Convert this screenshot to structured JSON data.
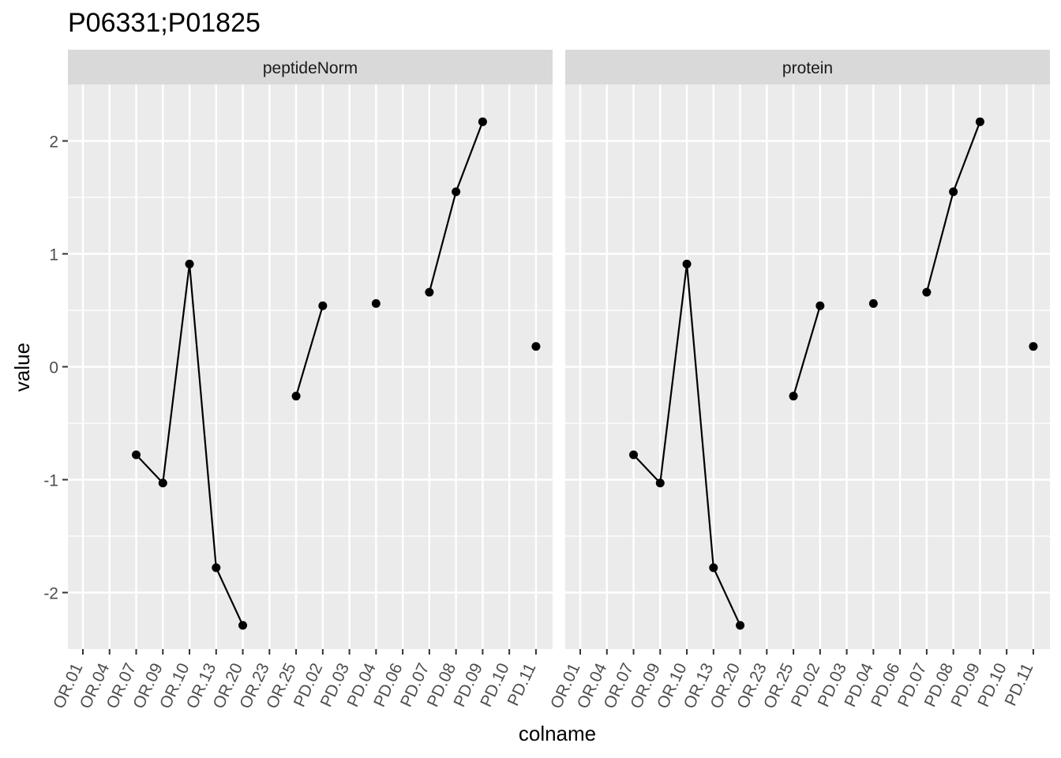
{
  "chart_data": {
    "type": "line",
    "title": "P06331;P01825",
    "xlabel": "colname",
    "ylabel": "value",
    "ylim": [
      -2.5,
      2.5
    ],
    "yticks": [
      -2,
      -1,
      0,
      1,
      2
    ],
    "ytick_labels": [
      "-2",
      "-1",
      "0",
      "1",
      "2"
    ],
    "grid": true,
    "categories": [
      "OR.01",
      "OR.04",
      "OR.07",
      "OR.09",
      "OR.10",
      "OR.13",
      "OR.20",
      "OR.23",
      "OR.25",
      "PD.02",
      "PD.03",
      "PD.04",
      "PD.06",
      "PD.07",
      "PD.08",
      "PD.09",
      "PD.10",
      "PD.11"
    ],
    "panels": [
      {
        "name": "peptideNorm",
        "values": [
          null,
          null,
          -0.78,
          -1.03,
          0.91,
          -1.78,
          -2.29,
          null,
          -0.26,
          0.54,
          null,
          0.56,
          null,
          0.66,
          1.55,
          2.17,
          null,
          0.18
        ]
      },
      {
        "name": "protein",
        "values": [
          null,
          null,
          -0.78,
          -1.03,
          0.91,
          -1.78,
          -2.29,
          null,
          -0.26,
          0.54,
          null,
          0.56,
          null,
          0.66,
          1.55,
          2.17,
          null,
          0.18
        ]
      }
    ],
    "colors": {
      "panel_background": "#EBEBEB",
      "strip_background": "#D9D9D9",
      "grid": "#FFFFFF",
      "line": "#000000",
      "point": "#000000",
      "axis_text": "#4D4D4D",
      "strip_text": "#1A1A1A"
    }
  }
}
